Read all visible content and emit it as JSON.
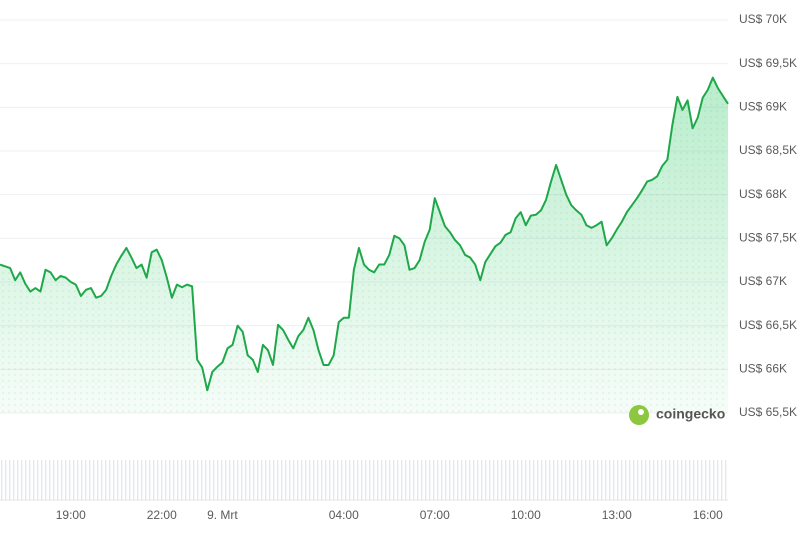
{
  "chart_data": {
    "type": "area",
    "watermark": "coingecko",
    "color": "#1fa84a",
    "grid": true,
    "ylim": [
      65500,
      70000
    ],
    "yticks": [
      {
        "value": 70000,
        "label": "US$ 70K"
      },
      {
        "value": 69500,
        "label": "US$ 69,5K"
      },
      {
        "value": 69000,
        "label": "US$ 69K"
      },
      {
        "value": 68500,
        "label": "US$ 68,5K"
      },
      {
        "value": 68000,
        "label": "US$ 68K"
      },
      {
        "value": 67500,
        "label": "US$ 67,5K"
      },
      {
        "value": 67000,
        "label": "US$ 67K"
      },
      {
        "value": 66500,
        "label": "US$ 66,5K"
      },
      {
        "value": 66000,
        "label": "US$ 66K"
      },
      {
        "value": 65500,
        "label": "US$ 65,5K"
      }
    ],
    "categories": [
      null,
      null,
      null,
      null,
      null,
      null,
      null,
      null,
      null,
      null,
      null,
      null,
      null,
      null,
      "19:00",
      null,
      null,
      null,
      null,
      null,
      null,
      null,
      null,
      null,
      null,
      null,
      null,
      null,
      null,
      null,
      null,
      null,
      "22:00",
      null,
      null,
      null,
      null,
      null,
      null,
      null,
      null,
      null,
      null,
      null,
      "9. Mrt",
      null,
      null,
      null,
      null,
      null,
      null,
      null,
      null,
      null,
      null,
      null,
      null,
      null,
      null,
      null,
      null,
      null,
      null,
      null,
      null,
      null,
      null,
      null,
      "04:00",
      null,
      null,
      null,
      null,
      null,
      null,
      null,
      null,
      null,
      null,
      null,
      null,
      null,
      null,
      null,
      null,
      null,
      "07:00",
      null,
      null,
      null,
      null,
      null,
      null,
      null,
      null,
      null,
      null,
      null,
      null,
      null,
      null,
      null,
      null,
      null,
      "10:00",
      null,
      null,
      null,
      null,
      null,
      null,
      null,
      null,
      null,
      null,
      null,
      null,
      null,
      null,
      null,
      null,
      null,
      "13:00",
      null,
      null,
      null,
      null,
      null,
      null,
      null,
      null,
      null,
      null,
      null,
      null,
      null,
      null,
      null,
      null,
      null,
      "16:00",
      null,
      null,
      null,
      null
    ],
    "values": [
      67200,
      67180,
      67160,
      67020,
      67110,
      66980,
      66890,
      66930,
      66890,
      67140,
      67110,
      67020,
      67070,
      67050,
      67000,
      66970,
      66840,
      66910,
      66930,
      66820,
      66840,
      66910,
      67070,
      67200,
      67300,
      67390,
      67280,
      67160,
      67200,
      67050,
      67340,
      67370,
      67250,
      67050,
      66820,
      66970,
      66940,
      66970,
      66950,
      66110,
      66020,
      65760,
      65970,
      66030,
      66080,
      66240,
      66280,
      66500,
      66430,
      66160,
      66110,
      65970,
      66280,
      66220,
      66050,
      66510,
      66450,
      66340,
      66240,
      66380,
      66450,
      66590,
      66450,
      66220,
      66050,
      66050,
      66160,
      66540,
      66590,
      66590,
      67140,
      67390,
      67200,
      67140,
      67110,
      67200,
      67200,
      67310,
      67530,
      67500,
      67420,
      67140,
      67160,
      67250,
      67460,
      67600,
      67960,
      67800,
      67640,
      67570,
      67480,
      67420,
      67310,
      67280,
      67200,
      67020,
      67230,
      67320,
      67410,
      67450,
      67540,
      67570,
      67730,
      67800,
      67650,
      67760,
      67770,
      67820,
      67940,
      68150,
      68340,
      68170,
      68000,
      67880,
      67820,
      67770,
      67650,
      67620,
      67650,
      67690,
      67420,
      67500,
      67600,
      67690,
      67800,
      67880,
      67960,
      68050,
      68150,
      68170,
      68210,
      68330,
      68400,
      68800,
      69120,
      68970,
      69080,
      68760,
      68880,
      69110,
      69200,
      69340,
      69220,
      69130,
      69040
    ]
  }
}
